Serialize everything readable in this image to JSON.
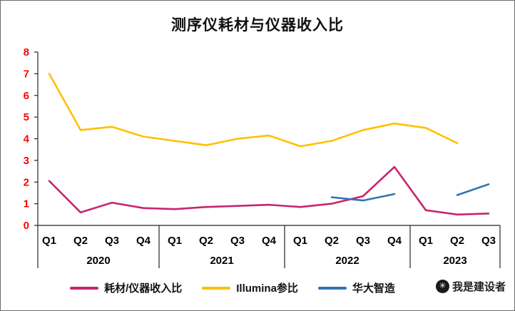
{
  "watermark": {
    "icon": "✳",
    "text": "我是建设者"
  },
  "chart_data": {
    "type": "line",
    "title": "测序仪耗材与仪器收入比",
    "x_labels": [
      "Q1",
      "Q2",
      "Q3",
      "Q4",
      "Q1",
      "Q2",
      "Q3",
      "Q4",
      "Q1",
      "Q2",
      "Q3",
      "Q4",
      "Q1",
      "Q2",
      "Q3"
    ],
    "year_groups": [
      {
        "label": "2020",
        "count": 4
      },
      {
        "label": "2021",
        "count": 4
      },
      {
        "label": "2022",
        "count": 4
      },
      {
        "label": "2023",
        "count": 3
      }
    ],
    "ylim": [
      0,
      8
    ],
    "ytick_step": 1,
    "y_tick_labels": [
      "0",
      "1",
      "2",
      "3",
      "4",
      "5",
      "6",
      "7",
      "8"
    ],
    "axis_label_color": "#FF0000",
    "x_label_color": "#000000",
    "axis_line_color": "#262626",
    "grid": false,
    "legend_position": "bottom",
    "series": [
      {
        "name": "耗材/仪器收入比",
        "color": "#C7266E",
        "values": [
          2.05,
          0.6,
          1.05,
          0.8,
          0.75,
          0.85,
          0.9,
          0.95,
          0.85,
          1.0,
          1.35,
          2.7,
          0.7,
          0.5,
          0.55
        ]
      },
      {
        "name": "Illumina参比",
        "color": "#FFC000",
        "values": [
          7.0,
          4.4,
          4.55,
          4.1,
          3.9,
          3.7,
          4.0,
          4.15,
          3.65,
          3.9,
          4.4,
          4.7,
          4.5,
          3.8,
          null
        ]
      },
      {
        "name": "华大智造",
        "color": "#2E75B6",
        "values": [
          null,
          null,
          null,
          null,
          null,
          null,
          null,
          null,
          null,
          1.3,
          1.15,
          1.45,
          null,
          1.4,
          1.9
        ]
      }
    ]
  }
}
